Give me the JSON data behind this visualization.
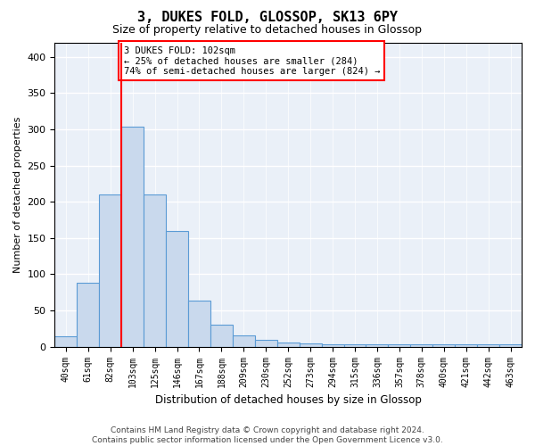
{
  "title": "3, DUKES FOLD, GLOSSOP, SK13 6PY",
  "subtitle": "Size of property relative to detached houses in Glossop",
  "xlabel": "Distribution of detached houses by size in Glossop",
  "ylabel": "Number of detached properties",
  "bar_values": [
    15,
    88,
    210,
    304,
    210,
    160,
    64,
    30,
    16,
    9,
    6,
    4,
    3,
    3,
    3,
    3,
    3,
    3,
    3,
    3,
    3
  ],
  "bar_labels": [
    "40sqm",
    "61sqm",
    "82sqm",
    "103sqm",
    "125sqm",
    "146sqm",
    "167sqm",
    "188sqm",
    "209sqm",
    "230sqm",
    "252sqm",
    "273sqm",
    "294sqm",
    "315sqm",
    "336sqm",
    "357sqm",
    "378sqm",
    "400sqm",
    "421sqm",
    "442sqm",
    "463sqm"
  ],
  "bar_color": "#c9d9ed",
  "bar_edge_color": "#5b9bd5",
  "red_line_x": 2.5,
  "annotation_text": "3 DUKES FOLD: 102sqm\n← 25% of detached houses are smaller (284)\n74% of semi-detached houses are larger (824) →",
  "annotation_box_color": "white",
  "annotation_box_edge": "red",
  "ylim": [
    0,
    420
  ],
  "background_color": "#eaf0f8",
  "grid_color": "white",
  "footer_line1": "Contains HM Land Registry data © Crown copyright and database right 2024.",
  "footer_line2": "Contains public sector information licensed under the Open Government Licence v3.0."
}
